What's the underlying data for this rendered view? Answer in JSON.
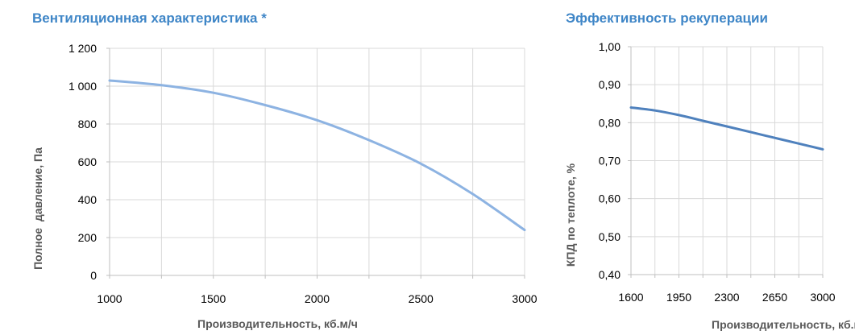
{
  "chart_data": [
    {
      "type": "line",
      "title": "Вентиляционная характеристика *",
      "xlabel": "Производительность, кб.м/ч",
      "ylabel": "Полное  давление, Па",
      "xlim": [
        1000,
        3000
      ],
      "ylim": [
        0,
        1200
      ],
      "x_ticks": [
        1000,
        1500,
        2000,
        2500,
        3000
      ],
      "x_tick_labels": [
        "1000",
        "1500",
        "2000",
        "2500",
        "3000"
      ],
      "y_ticks": [
        0,
        200,
        400,
        600,
        800,
        1000,
        1200
      ],
      "y_tick_labels": [
        "0",
        "200",
        "400",
        "600",
        "800",
        "1 000",
        "1 200"
      ],
      "x_minor_grid": [
        1250,
        1750,
        2250,
        2750
      ],
      "grid": true,
      "color": "#8db3e2",
      "series": [
        {
          "x": [
            1000,
            1250,
            1500,
            1750,
            2000,
            2250,
            2500,
            2750,
            3000
          ],
          "values": [
            1030,
            1005,
            965,
            900,
            820,
            715,
            590,
            430,
            240
          ]
        }
      ]
    },
    {
      "type": "line",
      "title": "Эффективность рекуперации",
      "xlabel": "Производительность, кб.м/ч",
      "ylabel": "КПД по теплоте, %",
      "xlim": [
        1600,
        3000
      ],
      "ylim": [
        0.4,
        1.0
      ],
      "x_ticks": [
        1600,
        1950,
        2300,
        2650,
        3000
      ],
      "x_tick_labels": [
        "1600",
        "1950",
        "2300",
        "2650",
        "3000"
      ],
      "y_ticks": [
        0.4,
        0.5,
        0.6,
        0.7,
        0.8,
        0.9,
        1.0
      ],
      "y_tick_labels": [
        "0,40",
        "0,50",
        "0,60",
        "0,70",
        "0,80",
        "0,90",
        "1,00"
      ],
      "x_minor_grid": [
        1775,
        2125,
        2475,
        2825
      ],
      "grid": true,
      "color": "#4f81bd",
      "series": [
        {
          "x": [
            1600,
            1775,
            1950,
            2125,
            2300,
            2475,
            2650,
            2825,
            3000
          ],
          "values": [
            0.84,
            0.832,
            0.82,
            0.805,
            0.79,
            0.775,
            0.76,
            0.745,
            0.73
          ]
        }
      ]
    }
  ]
}
